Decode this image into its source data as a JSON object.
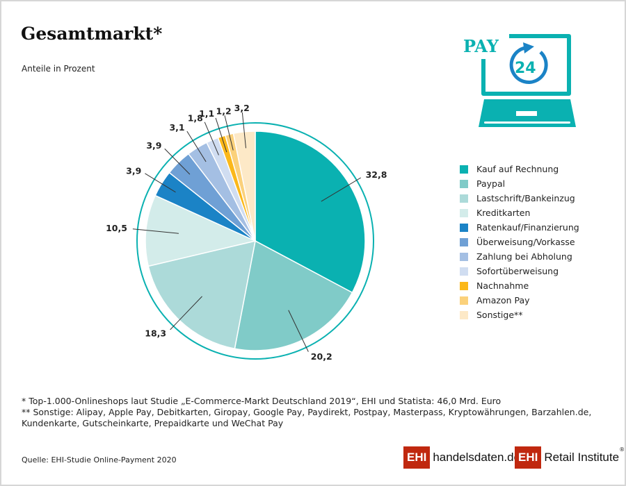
{
  "header": {
    "title": "Gesamtmarkt*",
    "subtitle": "Anteile in Prozent"
  },
  "chart_data": {
    "type": "pie",
    "title": "Gesamtmarkt*",
    "subtitle": "Anteile in Prozent",
    "start": "top",
    "direction": "clockwise",
    "slices": [
      {
        "label": "Kauf auf Rechnung",
        "value": 32.8,
        "display": "32,8",
        "color": "#0ab1b1"
      },
      {
        "label": "Paypal",
        "value": 20.2,
        "display": "20,2",
        "color": "#80cbc8"
      },
      {
        "label": "Lastschrift/Bankeinzug",
        "value": 18.3,
        "display": "18,3",
        "color": "#acdad9"
      },
      {
        "label": "Kreditkarten",
        "value": 10.5,
        "display": "10,5",
        "color": "#d3ecea"
      },
      {
        "label": "Ratenkauf/Finanzierung",
        "value": 3.9,
        "display": "3,9",
        "color": "#1b83c6"
      },
      {
        "label": "Überweisung/Vorkasse",
        "value": 3.9,
        "display": "3,9",
        "color": "#6fa0d5"
      },
      {
        "label": "Zahlung bei Abholung",
        "value": 3.1,
        "display": "3,1",
        "color": "#a4bfe3"
      },
      {
        "label": "Sofortüberweisung",
        "value": 1.8,
        "display": "1,8",
        "color": "#d0ddf1"
      },
      {
        "label": "Nachnahme",
        "value": 1.1,
        "display": "1,1",
        "color": "#fbb81a"
      },
      {
        "label": "Amazon Pay",
        "value": 1.2,
        "display": "1,2",
        "color": "#fbd17b"
      },
      {
        "label": "Sonstige**",
        "value": 3.2,
        "display": "3,2",
        "color": "#fde9c7"
      }
    ],
    "legend_position": "right",
    "ring_color": "#0ab1b1"
  },
  "logo": {
    "pay_text": "PAY",
    "pay_number": "24",
    "teal": "#0ab1b1",
    "blue": "#1b83c6"
  },
  "notes": {
    "note1": "*   Top-1.000-Onlineshops laut Studie „E-Commerce-Markt Deutschland 2019“, EHI und Statista: 46,0 Mrd. Euro",
    "note2": "** Sonstige: Alipay, Apple Pay, Debitkarten, Giropay, Google Pay, Paydirekt, Postpay, Masterpass, Kryptowährungen, Barzahlen.de, Kundenkarte, Gutscheinkarte, Prepaidkarte und WeChat Pay"
  },
  "footer": {
    "source": "Quelle: EHI-Studie Online-Payment 2020",
    "logo1_mark": "EHI",
    "logo1_text": "handelsdaten.de",
    "logo2_mark": "EHI",
    "logo2_text": "Retail Institute",
    "registered": "®"
  }
}
